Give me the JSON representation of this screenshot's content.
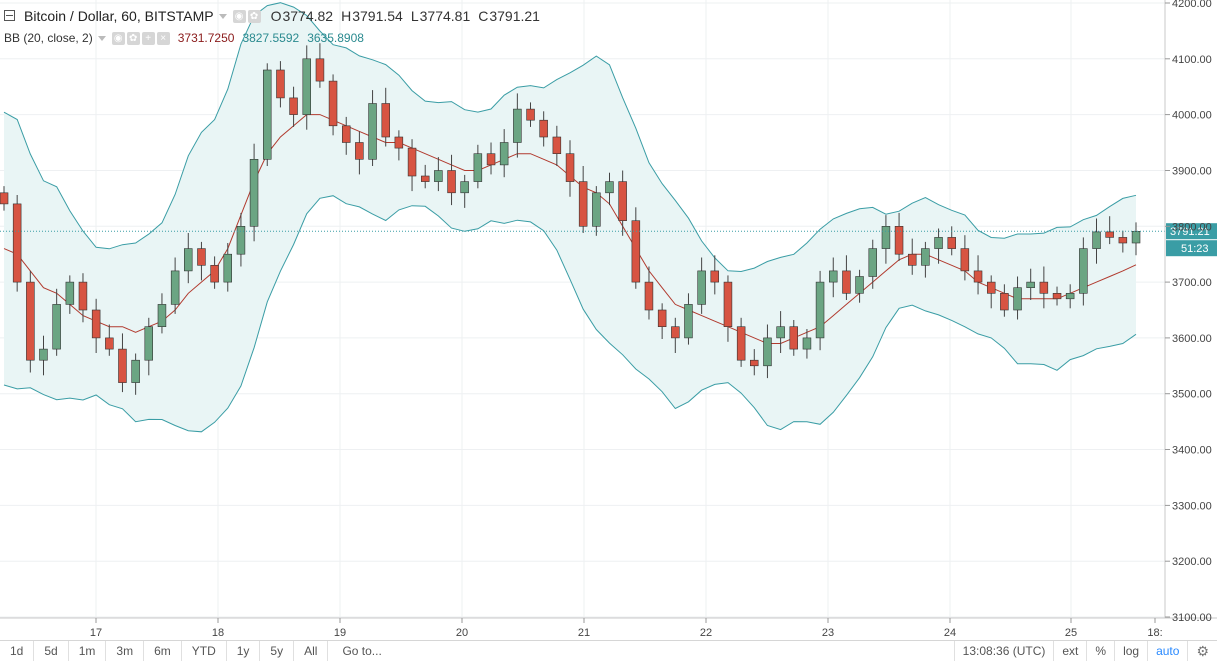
{
  "legend": {
    "symbol": "Bitcoin / Dollar, 60, BITSTAMP",
    "open_label": "O",
    "open": "3774.82",
    "high_label": "H",
    "high": "3791.54",
    "low_label": "L",
    "low": "3774.81",
    "close_label": "C",
    "close": "3791.21",
    "indicator": "BB (20, close, 2)",
    "bb_basis": "3731.7250",
    "bb_upper": "3827.5592",
    "bb_lower": "3635.8908"
  },
  "price_axis": {
    "ticks": [
      "4200.00",
      "4100.00",
      "4000.00",
      "3900.00",
      "3800.00",
      "3700.00",
      "3600.00",
      "3500.00",
      "3400.00",
      "3300.00",
      "3200.00",
      "3100.00"
    ],
    "last_price": "3791.21",
    "countdown": "51:23"
  },
  "time_axis": {
    "ticks": [
      "17",
      "18",
      "19",
      "20",
      "21",
      "22",
      "23",
      "24",
      "25",
      "18:"
    ]
  },
  "bottom_bar": {
    "timeframes": [
      "1d",
      "5d",
      "1m",
      "3m",
      "6m",
      "YTD",
      "1y",
      "5y",
      "All"
    ],
    "goto": "Go to...",
    "clock": "13:08:36 (UTC)",
    "ext": "ext",
    "percent": "%",
    "log": "log",
    "auto": "auto",
    "settings_icon": "gear-icon"
  },
  "colors": {
    "up_candle": "#6ba583",
    "down_candle": "#d75442",
    "bb_band": "#3a9da5",
    "bb_basis": "#b13a2e",
    "bb_fill": "#e9f5f5"
  },
  "chart_data": {
    "type": "candlestick",
    "ylim": [
      3100,
      4200
    ],
    "x_labels": [
      "17",
      "18",
      "19",
      "20",
      "21",
      "22",
      "23",
      "24",
      "25"
    ],
    "series": [
      {
        "name": "price",
        "close": [
          3840,
          3700,
          3560,
          3580,
          3660,
          3700,
          3650,
          3600,
          3580,
          3520,
          3560,
          3620,
          3660,
          3720,
          3760,
          3730,
          3700,
          3750,
          3800,
          3920,
          4080,
          4030,
          4000,
          4100,
          4060,
          3980,
          3950,
          3920,
          4020,
          3960,
          3940,
          3890,
          3880,
          3900,
          3860,
          3880,
          3930,
          3910,
          3950,
          4010,
          3990,
          3960,
          3930,
          3880,
          3800,
          3860,
          3880,
          3810,
          3700,
          3650,
          3620,
          3600,
          3660,
          3720,
          3700,
          3620,
          3560,
          3550,
          3600,
          3620,
          3580,
          3600,
          3700,
          3720,
          3680,
          3710,
          3760,
          3800,
          3750,
          3730,
          3760,
          3780,
          3760,
          3720,
          3700,
          3680,
          3650,
          3690,
          3700,
          3680,
          3670,
          3680,
          3760,
          3790,
          3780,
          3770,
          3791
        ]
      },
      {
        "name": "BB",
        "basis": [
          3760,
          3750,
          3720,
          3690,
          3680,
          3660,
          3640,
          3630,
          3620,
          3620,
          3610,
          3620,
          3630,
          3650,
          3680,
          3700,
          3720,
          3760,
          3820,
          3880,
          3930,
          3960,
          3980,
          4000,
          4000,
          3990,
          3980,
          3970,
          3960,
          3950,
          3950,
          3940,
          3930,
          3920,
          3910,
          3900,
          3900,
          3910,
          3920,
          3930,
          3930,
          3920,
          3910,
          3890,
          3870,
          3860,
          3840,
          3800,
          3760,
          3720,
          3690,
          3660,
          3650,
          3640,
          3630,
          3620,
          3610,
          3600,
          3590,
          3590,
          3600,
          3610,
          3620,
          3640,
          3660,
          3680,
          3700,
          3720,
          3740,
          3750,
          3750,
          3740,
          3730,
          3720,
          3700,
          3690,
          3680,
          3670,
          3670,
          3670,
          3670,
          3680,
          3690,
          3700,
          3710,
          3720,
          3731
        ]
      }
    ]
  }
}
